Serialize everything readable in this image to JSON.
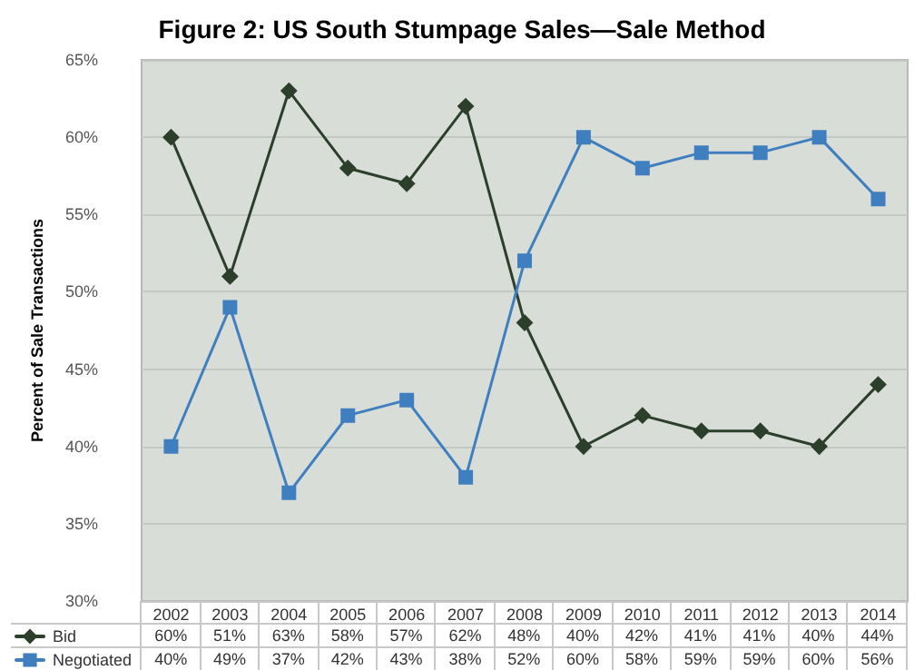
{
  "chart_data": {
    "type": "line",
    "title": "Figure 2: US South Stumpage Sales—Sale Method",
    "ylabel": "Percent of Sale Transactions",
    "categories": [
      "2002",
      "2003",
      "2004",
      "2005",
      "2006",
      "2007",
      "2008",
      "2009",
      "2010",
      "2011",
      "2012",
      "2013",
      "2014"
    ],
    "series": [
      {
        "name": "Bid",
        "color": "#2b3f2b",
        "marker": "diamond",
        "values": [
          60,
          51,
          63,
          58,
          57,
          62,
          48,
          40,
          42,
          41,
          41,
          40,
          44
        ],
        "value_labels": [
          "60%",
          "51%",
          "63%",
          "58%",
          "57%",
          "62%",
          "48%",
          "40%",
          "42%",
          "41%",
          "41%",
          "40%",
          "44%"
        ]
      },
      {
        "name": "Negotiated",
        "color": "#3f7fbf",
        "marker": "square",
        "values": [
          40,
          49,
          37,
          42,
          43,
          38,
          52,
          60,
          58,
          59,
          59,
          60,
          56
        ],
        "value_labels": [
          "40%",
          "49%",
          "37%",
          "42%",
          "43%",
          "38%",
          "52%",
          "60%",
          "58%",
          "59%",
          "59%",
          "60%",
          "56%"
        ]
      }
    ],
    "ylim": [
      30,
      65
    ],
    "yticks": [
      {
        "value": 30,
        "label": "30%"
      },
      {
        "value": 35,
        "label": "35%"
      },
      {
        "value": 40,
        "label": "40%"
      },
      {
        "value": 45,
        "label": "45%"
      },
      {
        "value": 50,
        "label": "50%"
      },
      {
        "value": 55,
        "label": "55%"
      },
      {
        "value": 60,
        "label": "60%"
      },
      {
        "value": 65,
        "label": "65%"
      }
    ],
    "grid": "y",
    "legend": "bottom left",
    "line_style": "solid"
  }
}
